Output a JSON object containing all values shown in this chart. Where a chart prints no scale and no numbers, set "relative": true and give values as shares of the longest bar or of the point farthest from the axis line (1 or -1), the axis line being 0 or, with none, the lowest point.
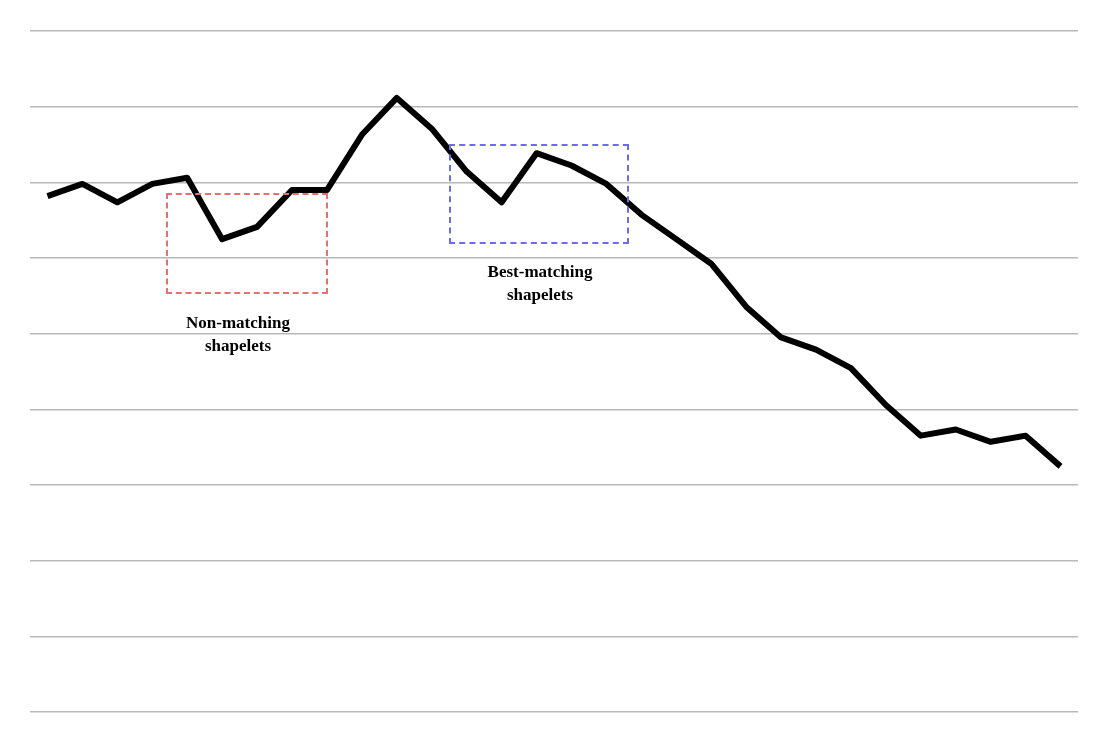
{
  "chart_data": {
    "type": "line",
    "relative": true,
    "grid": "y",
    "legend": false,
    "marker": "none",
    "line_style": "solid",
    "categories": [
      null,
      null,
      null,
      null,
      null,
      null,
      null,
      null,
      null,
      null,
      null,
      null,
      null,
      null,
      null,
      null,
      null,
      null,
      null,
      null,
      null,
      null,
      null,
      null,
      null,
      null,
      null,
      null,
      null,
      null
    ],
    "series": [
      {
        "color": "#000000",
        "values": [
          0.84,
          0.86,
          0.83,
          0.86,
          0.87,
          0.77,
          0.79,
          0.85,
          0.85,
          0.94,
          1,
          0.95,
          0.88,
          0.83,
          0.91,
          0.89,
          0.86,
          0.81,
          0.77,
          0.73,
          0.66,
          0.61,
          0.59,
          0.56,
          0.5,
          0.45,
          0.46,
          0.44,
          0.45,
          0.4
        ]
      }
    ],
    "annotations": [
      "Non-matching shapelets",
      "Best-matching shapelets"
    ]
  }
}
